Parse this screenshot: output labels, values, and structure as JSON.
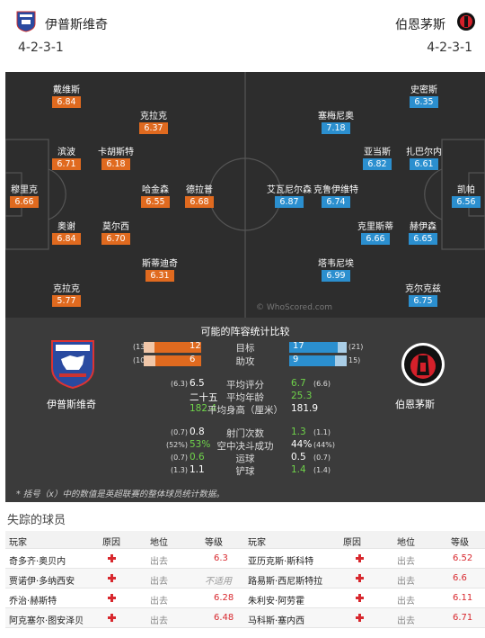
{
  "header": {
    "home_name": "伊普斯维奇",
    "away_name": "伯恩茅斯",
    "home_formation": "4-2-3-1",
    "away_formation": "4-2-3-1"
  },
  "pitch": {
    "home_players": [
      {
        "name": "戴维斯",
        "rating": "6.84"
      },
      {
        "name": "克拉克",
        "rating": "6.37"
      },
      {
        "name": "滨波",
        "rating": "6.71"
      },
      {
        "name": "卡胡斯特",
        "rating": "6.18"
      },
      {
        "name": "穆里克",
        "rating": "6.66"
      },
      {
        "name": "哈金森",
        "rating": "6.55"
      },
      {
        "name": "德拉普",
        "rating": "6.68"
      },
      {
        "name": "奥谢",
        "rating": "6.84"
      },
      {
        "name": "莫尔西",
        "rating": "6.70"
      },
      {
        "name": "斯蒂迪奇",
        "rating": "6.31"
      },
      {
        "name": "克拉克",
        "rating": "5.77"
      }
    ],
    "away_players": [
      {
        "name": "史密斯",
        "rating": "6.35"
      },
      {
        "name": "塞梅尼奥",
        "rating": "7.18"
      },
      {
        "name": "亚当斯",
        "rating": "6.82"
      },
      {
        "name": "扎巴尔内",
        "rating": "6.61"
      },
      {
        "name": "艾瓦尼尔森",
        "rating": "6.87"
      },
      {
        "name": "克鲁伊维特",
        "rating": "6.74"
      },
      {
        "name": "凯帕",
        "rating": "6.56"
      },
      {
        "name": "克里斯蒂",
        "rating": "6.66"
      },
      {
        "name": "赫伊森",
        "rating": "6.65"
      },
      {
        "name": "塔韦尼埃",
        "rating": "6.99"
      },
      {
        "name": "克尔克兹",
        "rating": "6.75"
      }
    ],
    "watermark": "© WhoScored.com"
  },
  "comparison": {
    "title": "可能的阵容统计比较",
    "bars": [
      {
        "label": "目标",
        "home": "12",
        "home_season": "(13",
        "away": "17",
        "away_season": "(21)",
        "home_frac": 0.41,
        "away_frac": 0.45
      },
      {
        "label": "助攻",
        "home": "6",
        "home_season": "(10",
        "away": "9",
        "away_season": "15)",
        "home_frac": 0.4,
        "away_frac": 0.39
      }
    ],
    "stats": [
      {
        "label": "平均评分",
        "home": "6.5",
        "home_paren": "(6.3)",
        "away": "6.7",
        "away_paren": "(6.6)",
        "home_color": "#ffffff",
        "away_color": "#6fd34a"
      },
      {
        "label": "平均年龄",
        "home": "二十五",
        "home_paren": "",
        "away": "25.3",
        "away_paren": "",
        "home_color": "#ffffff",
        "away_color": "#6fd34a"
      },
      {
        "label": "平均身高（厘米）",
        "home": "182.4",
        "home_paren": "",
        "away": "181.9",
        "away_paren": "",
        "home_color": "#6fd34a",
        "away_color": "#ffffff"
      },
      {
        "label": "射门次数",
        "home": "0.8",
        "home_paren": "(0.7)",
        "away": "1.3",
        "away_paren": "(1.1)",
        "home_color": "#ffffff",
        "away_color": "#6fd34a"
      },
      {
        "label": "空中决斗成功",
        "home": "53%",
        "home_paren": "(52%)",
        "away": "44%",
        "away_paren": "(44%)",
        "home_color": "#6fd34a",
        "away_color": "#ffffff"
      },
      {
        "label": "运球",
        "home": "0.6",
        "home_paren": "(0.7)",
        "away": "0.5",
        "away_paren": "(0.7)",
        "home_color": "#6fd34a",
        "away_color": "#ffffff"
      },
      {
        "label": "铲球",
        "home": "1.1",
        "home_paren": "(1.3)",
        "away": "1.4",
        "away_paren": "(1.4)",
        "home_color": "#ffffff",
        "away_color": "#6fd34a"
      }
    ],
    "home_team": "伊普斯维奇",
    "away_team": "伯恩茅斯",
    "note": "* 括号（x）中的数值是英超联赛的整体球员统计数据。"
  },
  "missing": {
    "title": "失踪的球员",
    "headers": [
      "玩家",
      "原因",
      "地位",
      "等级",
      "玩家",
      "原因",
      "地位",
      "等级"
    ],
    "rows": [
      {
        "home_player": "奇多齐·奥贝内",
        "home_status": "出去",
        "home_rating": "6.3",
        "away_player": "亚历克斯·斯科特",
        "away_status": "出去",
        "away_rating": "6.52"
      },
      {
        "home_player": "贾诺伊·多纳西安",
        "home_status": "出去",
        "home_rating": "不适用",
        "away_player": "路易斯·西尼斯特拉",
        "away_status": "出去",
        "away_rating": "6.6"
      },
      {
        "home_player": "乔治·赫斯特",
        "home_status": "出去",
        "home_rating": "6.28",
        "away_player": "朱利安·阿劳霍",
        "away_status": "出去",
        "away_rating": "6.11"
      },
      {
        "home_player": "阿克塞尔·图安泽贝",
        "home_status": "出去",
        "home_rating": "6.48",
        "away_player": "马科斯·塞内西",
        "away_status": "出去",
        "away_rating": "6.71"
      }
    ]
  },
  "colors": {
    "home_accent": "#e06a1f",
    "away_accent": "#2b8fcf",
    "pitch": "#2d2d2d",
    "panel": "#3b3b3b",
    "injury": "#d8282e"
  }
}
